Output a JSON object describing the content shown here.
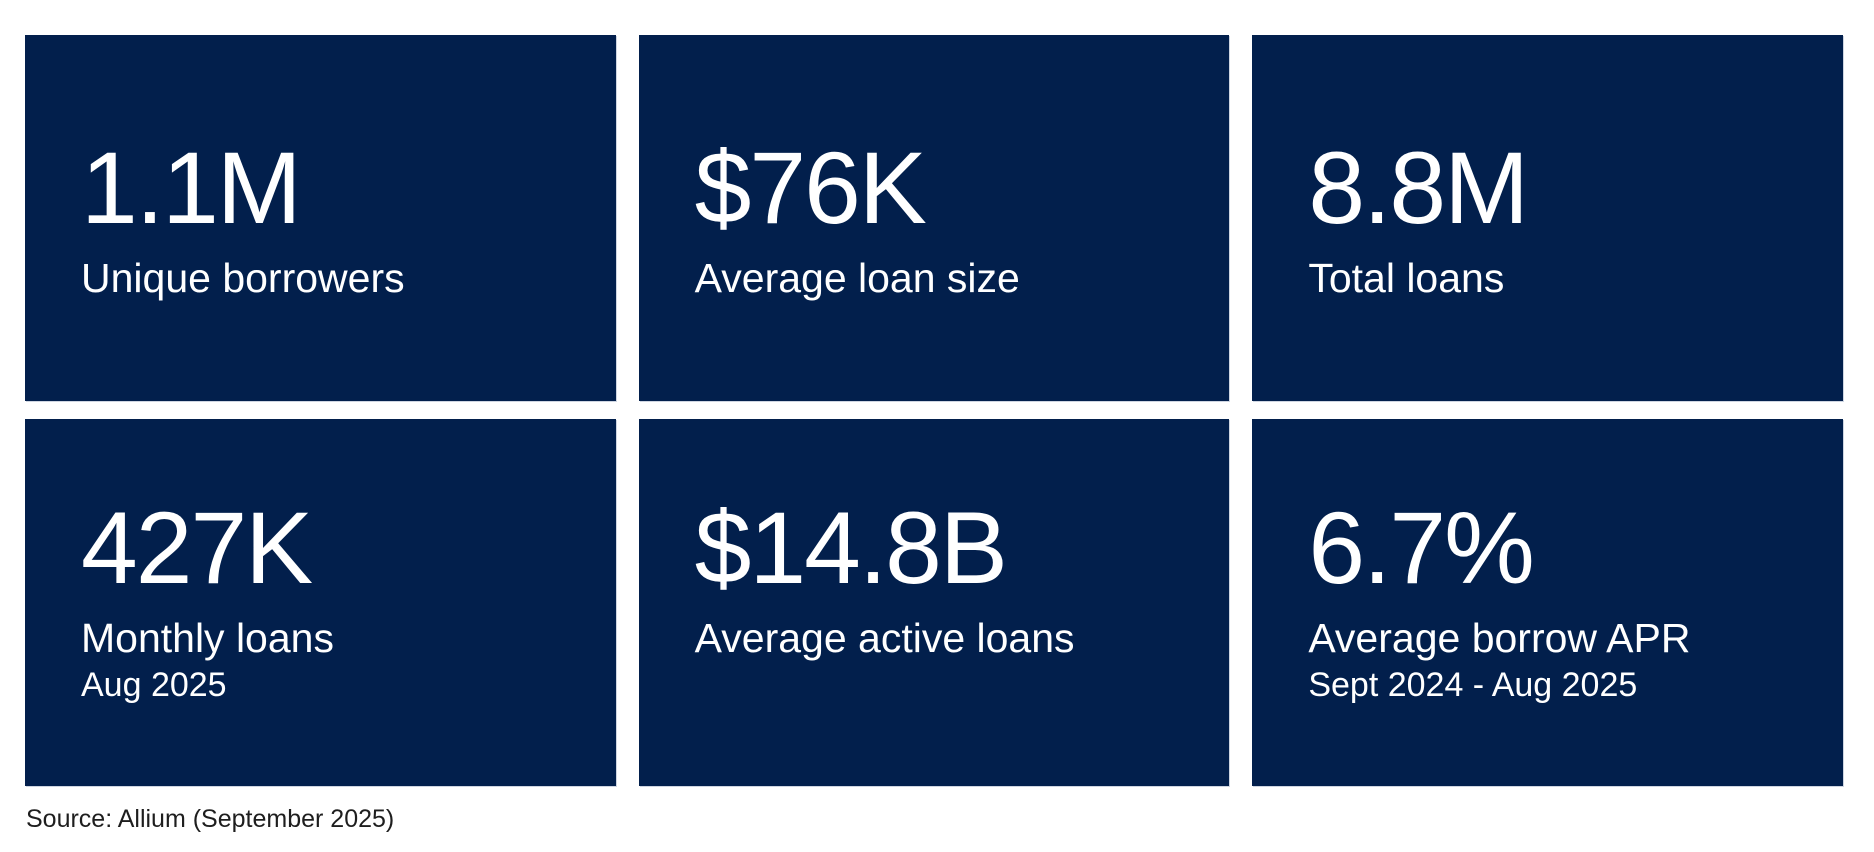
{
  "chart_data": {
    "type": "table",
    "title": "",
    "layout": "2x3 grid of KPI stat cards, dark navy tiles on white background, source note bottom-left",
    "columns": [
      "value",
      "metric",
      "period"
    ],
    "rows": [
      [
        "1.1M",
        "Unique borrowers",
        ""
      ],
      [
        "$76K",
        "Average loan size",
        ""
      ],
      [
        "8.8M",
        "Total loans",
        ""
      ],
      [
        "427K",
        "Monthly loans",
        "Aug 2025"
      ],
      [
        "$14.8B",
        "Average active loans",
        ""
      ],
      [
        "6.7%",
        "Average borrow APR",
        "Sept 2024 - Aug 2025"
      ]
    ],
    "source": "Source: Allium (September 2025)"
  },
  "cards": [
    {
      "value": "1.1M",
      "label": "Unique borrowers"
    },
    {
      "value": "$76K",
      "label": "Average loan size"
    },
    {
      "value": "8.8M",
      "label": "Total loans"
    },
    {
      "value": "427K",
      "label": "Monthly loans",
      "sublabel": "Aug 2025"
    },
    {
      "value": "$14.8B",
      "label": "Average active loans"
    },
    {
      "value": "6.7%",
      "label": "Average borrow APR",
      "sublabel": "Sept 2024 - Aug 2025"
    }
  ],
  "footer": {
    "source_text": "Source: Allium (September 2025)"
  },
  "colors": {
    "card_bg": "#021f4c",
    "card_text": "#ffffff",
    "page_bg": "#ffffff",
    "footer_text": "#1e1e1e"
  }
}
